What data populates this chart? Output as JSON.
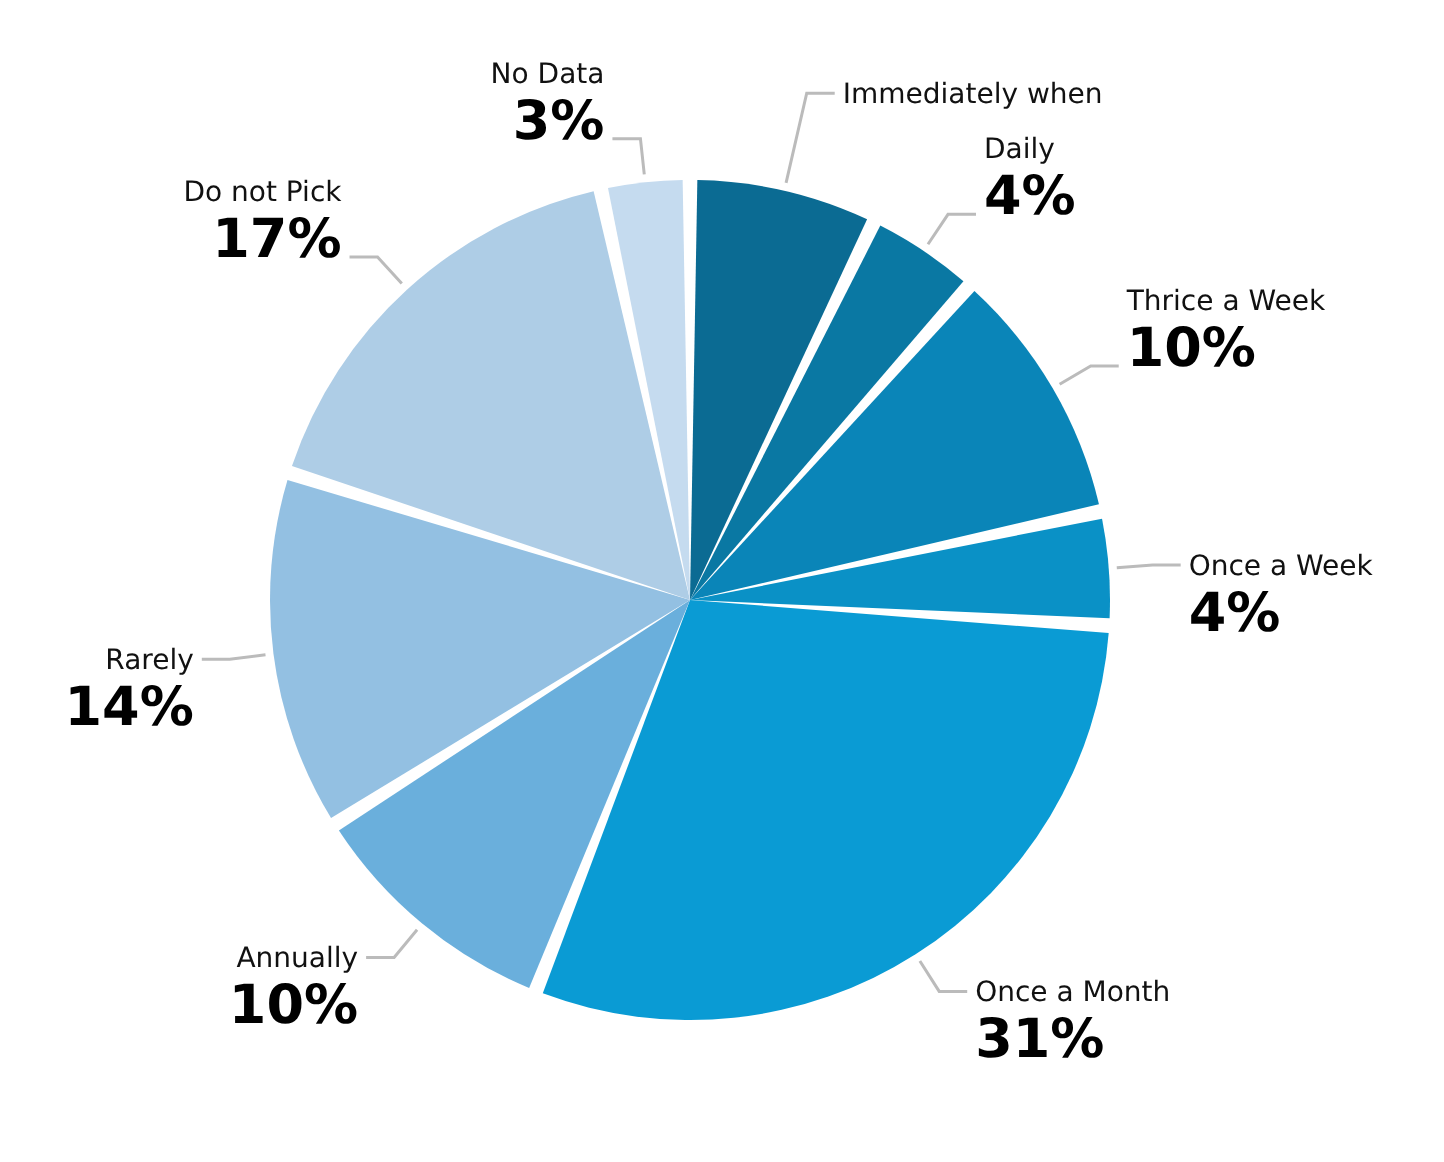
{
  "chart_data": {
    "type": "pie",
    "categories": [
      "Immediately when",
      "Daily",
      "Thrice a Week",
      "Once a Week",
      "Once a Month",
      "Annually",
      "Rarely",
      "Do not Pick",
      "No Data"
    ],
    "values": [
      7,
      4,
      10,
      4,
      31,
      10,
      14,
      17,
      3
    ],
    "value_labels": [
      null,
      "4%",
      "10%",
      "4%",
      "31%",
      "10%",
      "14%",
      "17%",
      "3%"
    ],
    "colors": [
      "#0b6b93",
      "#0a78a3",
      "#0a85b8",
      "#0a91c6",
      "#0a9bd4",
      "#6aafdc",
      "#93c0e2",
      "#aecde6",
      "#c5dbef"
    ]
  }
}
